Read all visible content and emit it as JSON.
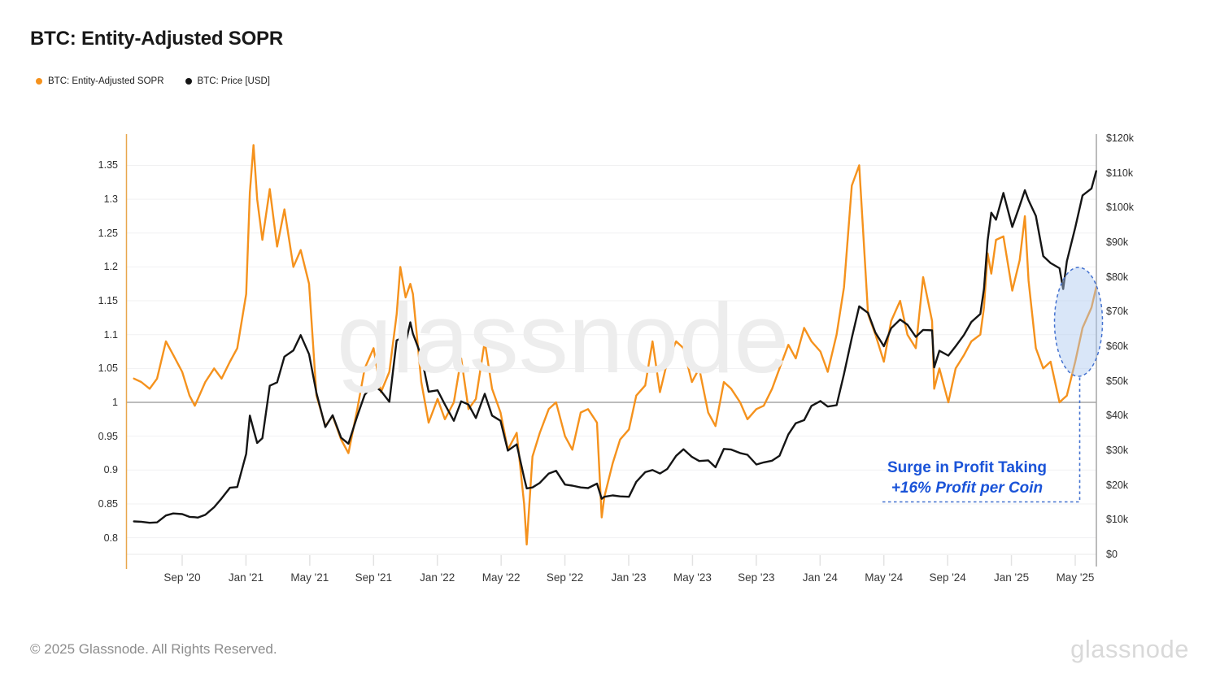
{
  "header": {
    "title": "BTC: Entity-Adjusted SOPR"
  },
  "legend": [
    {
      "label": "BTC: Entity-Adjusted SOPR",
      "color": "#f5921d"
    },
    {
      "label": "BTC: Price [USD]",
      "color": "#151515"
    }
  ],
  "watermark": "glassnode",
  "footer": {
    "copyright": "© 2025 Glassnode. All Rights Reserved.",
    "logo": "glassnode"
  },
  "annotation": {
    "line1": "Surge in Profit Taking",
    "line2": "+16% Profit per Coin",
    "text_color": "#1a53d8",
    "dash_color": "#4472d0",
    "highlight_fill": "#aac8f0",
    "highlight_region": "Apr–Jun 2025 SOPR surge"
  },
  "chart_data": {
    "type": "line",
    "title": "BTC: Entity-Adjusted SOPR",
    "grid": "horizontal",
    "baseline_value": 1.0,
    "x_axis": {
      "labels": [
        "Sep '20",
        "Jan '21",
        "May '21",
        "Sep '21",
        "Jan '22",
        "May '22",
        "Sep '22",
        "Jan '23",
        "May '23",
        "Sep '23",
        "Jan '24",
        "May '24",
        "Sep '24",
        "Jan '25",
        "May '25"
      ]
    },
    "y_left": {
      "name": "Entity-Adjusted SOPR",
      "tick_labels": [
        "1.35",
        "1.3",
        "1.25",
        "1.2",
        "1.15",
        "1.1",
        "1.05",
        "1",
        "0.95",
        "0.9",
        "0.85",
        "0.8"
      ],
      "tick_values": [
        1.35,
        1.3,
        1.25,
        1.2,
        1.15,
        1.1,
        1.05,
        1.0,
        0.95,
        0.9,
        0.85,
        0.8
      ],
      "range": [
        0.775,
        1.41
      ]
    },
    "y_right": {
      "name": "BTC Price [USD]",
      "tick_labels": [
        "$120k",
        "$110k",
        "$100k",
        "$90k",
        "$80k",
        "$70k",
        "$60k",
        "$50k",
        "$40k",
        "$30k",
        "$20k",
        "$10k",
        "$0"
      ],
      "tick_values_kusd": [
        120,
        110,
        100,
        90,
        80,
        70,
        60,
        50,
        40,
        30,
        20,
        10,
        0
      ],
      "range_kusd": [
        0,
        120
      ]
    },
    "series": [
      {
        "name": "BTC: Entity-Adjusted SOPR",
        "axis": "left",
        "color": "#f5921d",
        "column": 1
      },
      {
        "name": "BTC: Price [USD]",
        "axis": "right",
        "color": "#151515",
        "column": 2
      }
    ],
    "columns": [
      "date",
      "sopr",
      "price_kusd"
    ],
    "points": [
      [
        "2020-06-01",
        1.035,
        9.5
      ],
      [
        "2020-06-15",
        1.03,
        9.4
      ],
      [
        "2020-07-01",
        1.02,
        9.1
      ],
      [
        "2020-07-15",
        1.035,
        9.2
      ],
      [
        "2020-08-01",
        1.09,
        11.2
      ],
      [
        "2020-08-15",
        1.07,
        11.8
      ],
      [
        "2020-09-01",
        1.045,
        11.6
      ],
      [
        "2020-09-15",
        1.01,
        10.8
      ],
      [
        "2020-09-25",
        0.995,
        10.7
      ],
      [
        "2020-10-01",
        1.005,
        10.6
      ],
      [
        "2020-10-15",
        1.03,
        11.4
      ],
      [
        "2020-11-01",
        1.05,
        13.6
      ],
      [
        "2020-11-15",
        1.035,
        16.1
      ],
      [
        "2020-12-01",
        1.06,
        19.2
      ],
      [
        "2020-12-15",
        1.08,
        19.4
      ],
      [
        "2021-01-01",
        1.16,
        29.0
      ],
      [
        "2021-01-08",
        1.31,
        40.0
      ],
      [
        "2021-01-15",
        1.38,
        36.0
      ],
      [
        "2021-01-22",
        1.3,
        32.1
      ],
      [
        "2021-02-01",
        1.24,
        33.5
      ],
      [
        "2021-02-15",
        1.315,
        48.6
      ],
      [
        "2021-03-01",
        1.23,
        49.6
      ],
      [
        "2021-03-15",
        1.285,
        57.0
      ],
      [
        "2021-04-01",
        1.2,
        58.8
      ],
      [
        "2021-04-15",
        1.225,
        63.2
      ],
      [
        "2021-05-01",
        1.175,
        57.7
      ],
      [
        "2021-05-15",
        1.01,
        46.5
      ],
      [
        "2021-06-01",
        0.965,
        36.7
      ],
      [
        "2021-06-15",
        0.98,
        40.1
      ],
      [
        "2021-07-01",
        0.945,
        33.6
      ],
      [
        "2021-07-15",
        0.925,
        31.9
      ],
      [
        "2021-08-01",
        0.99,
        39.9
      ],
      [
        "2021-08-15",
        1.05,
        46.0
      ],
      [
        "2021-09-01",
        1.08,
        48.8
      ],
      [
        "2021-09-15",
        1.015,
        47.1
      ],
      [
        "2021-10-01",
        1.045,
        44.0
      ],
      [
        "2021-10-15",
        1.13,
        61.7
      ],
      [
        "2021-10-22",
        1.2,
        62.2
      ],
      [
        "2021-11-01",
        1.155,
        60.9
      ],
      [
        "2021-11-10",
        1.175,
        66.9
      ],
      [
        "2021-11-15",
        1.16,
        63.6
      ],
      [
        "2021-12-01",
        1.03,
        57.2
      ],
      [
        "2021-12-15",
        0.97,
        46.9
      ],
      [
        "2022-01-01",
        1.005,
        47.3
      ],
      [
        "2022-01-15",
        0.975,
        43.2
      ],
      [
        "2022-02-01",
        1.0,
        38.5
      ],
      [
        "2022-02-15",
        1.065,
        44.1
      ],
      [
        "2022-03-01",
        0.99,
        43.2
      ],
      [
        "2022-03-15",
        1.005,
        39.3
      ],
      [
        "2022-04-01",
        1.09,
        46.3
      ],
      [
        "2022-04-15",
        1.02,
        40.0
      ],
      [
        "2022-05-01",
        0.985,
        38.5
      ],
      [
        "2022-05-15",
        0.93,
        29.9
      ],
      [
        "2022-06-01",
        0.955,
        31.7
      ],
      [
        "2022-06-15",
        0.85,
        22.1
      ],
      [
        "2022-06-20",
        0.79,
        19.0
      ],
      [
        "2022-07-01",
        0.92,
        19.3
      ],
      [
        "2022-07-15",
        0.955,
        20.6
      ],
      [
        "2022-08-01",
        0.99,
        23.3
      ],
      [
        "2022-08-15",
        1.0,
        24.1
      ],
      [
        "2022-09-01",
        0.95,
        20.1
      ],
      [
        "2022-09-15",
        0.93,
        19.8
      ],
      [
        "2022-10-01",
        0.985,
        19.3
      ],
      [
        "2022-10-15",
        0.99,
        19.1
      ],
      [
        "2022-11-01",
        0.97,
        20.4
      ],
      [
        "2022-11-10",
        0.83,
        16.0
      ],
      [
        "2022-11-15",
        0.86,
        16.6
      ],
      [
        "2022-12-01",
        0.91,
        17.0
      ],
      [
        "2022-12-15",
        0.945,
        16.7
      ],
      [
        "2023-01-01",
        0.96,
        16.6
      ],
      [
        "2023-01-15",
        1.01,
        20.9
      ],
      [
        "2023-02-01",
        1.025,
        23.7
      ],
      [
        "2023-02-15",
        1.09,
        24.3
      ],
      [
        "2023-03-01",
        1.015,
        23.3
      ],
      [
        "2023-03-15",
        1.06,
        24.6
      ],
      [
        "2023-04-01",
        1.09,
        28.4
      ],
      [
        "2023-04-15",
        1.08,
        30.3
      ],
      [
        "2023-05-01",
        1.03,
        28.1
      ],
      [
        "2023-05-15",
        1.05,
        26.9
      ],
      [
        "2023-06-01",
        0.985,
        27.1
      ],
      [
        "2023-06-15",
        0.965,
        25.1
      ],
      [
        "2023-07-01",
        1.03,
        30.4
      ],
      [
        "2023-07-15",
        1.02,
        30.2
      ],
      [
        "2023-08-01",
        1.0,
        29.2
      ],
      [
        "2023-08-15",
        0.975,
        28.7
      ],
      [
        "2023-09-01",
        0.99,
        25.9
      ],
      [
        "2023-09-15",
        0.995,
        26.5
      ],
      [
        "2023-10-01",
        1.02,
        27.0
      ],
      [
        "2023-10-15",
        1.05,
        28.4
      ],
      [
        "2023-11-01",
        1.085,
        34.6
      ],
      [
        "2023-11-15",
        1.065,
        37.8
      ],
      [
        "2023-12-01",
        1.11,
        38.7
      ],
      [
        "2023-12-15",
        1.09,
        42.8
      ],
      [
        "2024-01-01",
        1.075,
        44.2
      ],
      [
        "2024-01-15",
        1.045,
        42.6
      ],
      [
        "2024-02-01",
        1.1,
        43.0
      ],
      [
        "2024-02-15",
        1.17,
        52.0
      ],
      [
        "2024-03-01",
        1.32,
        62.4
      ],
      [
        "2024-03-15",
        1.35,
        71.5
      ],
      [
        "2024-04-01",
        1.13,
        69.6
      ],
      [
        "2024-04-15",
        1.1,
        63.9
      ],
      [
        "2024-05-01",
        1.06,
        60.0
      ],
      [
        "2024-05-15",
        1.12,
        65.2
      ],
      [
        "2024-06-01",
        1.15,
        67.7
      ],
      [
        "2024-06-15",
        1.1,
        66.2
      ],
      [
        "2024-07-01",
        1.08,
        62.7
      ],
      [
        "2024-07-15",
        1.185,
        64.7
      ],
      [
        "2024-08-01",
        1.12,
        64.6
      ],
      [
        "2024-08-05",
        1.02,
        53.9
      ],
      [
        "2024-08-15",
        1.05,
        58.7
      ],
      [
        "2024-09-01",
        1.0,
        57.3
      ],
      [
        "2024-09-15",
        1.05,
        60.0
      ],
      [
        "2024-10-01",
        1.07,
        63.3
      ],
      [
        "2024-10-15",
        1.09,
        67.0
      ],
      [
        "2024-11-01",
        1.1,
        69.3
      ],
      [
        "2024-11-08",
        1.14,
        76.5
      ],
      [
        "2024-11-15",
        1.22,
        90.5
      ],
      [
        "2024-11-22",
        1.19,
        98.5
      ],
      [
        "2024-12-01",
        1.24,
        96.5
      ],
      [
        "2024-12-15",
        1.245,
        104.2
      ],
      [
        "2025-01-01",
        1.165,
        94.4
      ],
      [
        "2025-01-15",
        1.21,
        100.5
      ],
      [
        "2025-01-25",
        1.275,
        105.0
      ],
      [
        "2025-02-01",
        1.18,
        102.1
      ],
      [
        "2025-02-15",
        1.08,
        97.6
      ],
      [
        "2025-03-01",
        1.05,
        86.0
      ],
      [
        "2025-03-15",
        1.06,
        84.0
      ],
      [
        "2025-04-01",
        1.0,
        82.5
      ],
      [
        "2025-04-08",
        1.005,
        76.5
      ],
      [
        "2025-04-15",
        1.01,
        84.5
      ],
      [
        "2025-05-01",
        1.06,
        94.2
      ],
      [
        "2025-05-15",
        1.11,
        103.5
      ],
      [
        "2025-06-01",
        1.14,
        105.5
      ],
      [
        "2025-06-10",
        1.17,
        110.5
      ]
    ]
  }
}
